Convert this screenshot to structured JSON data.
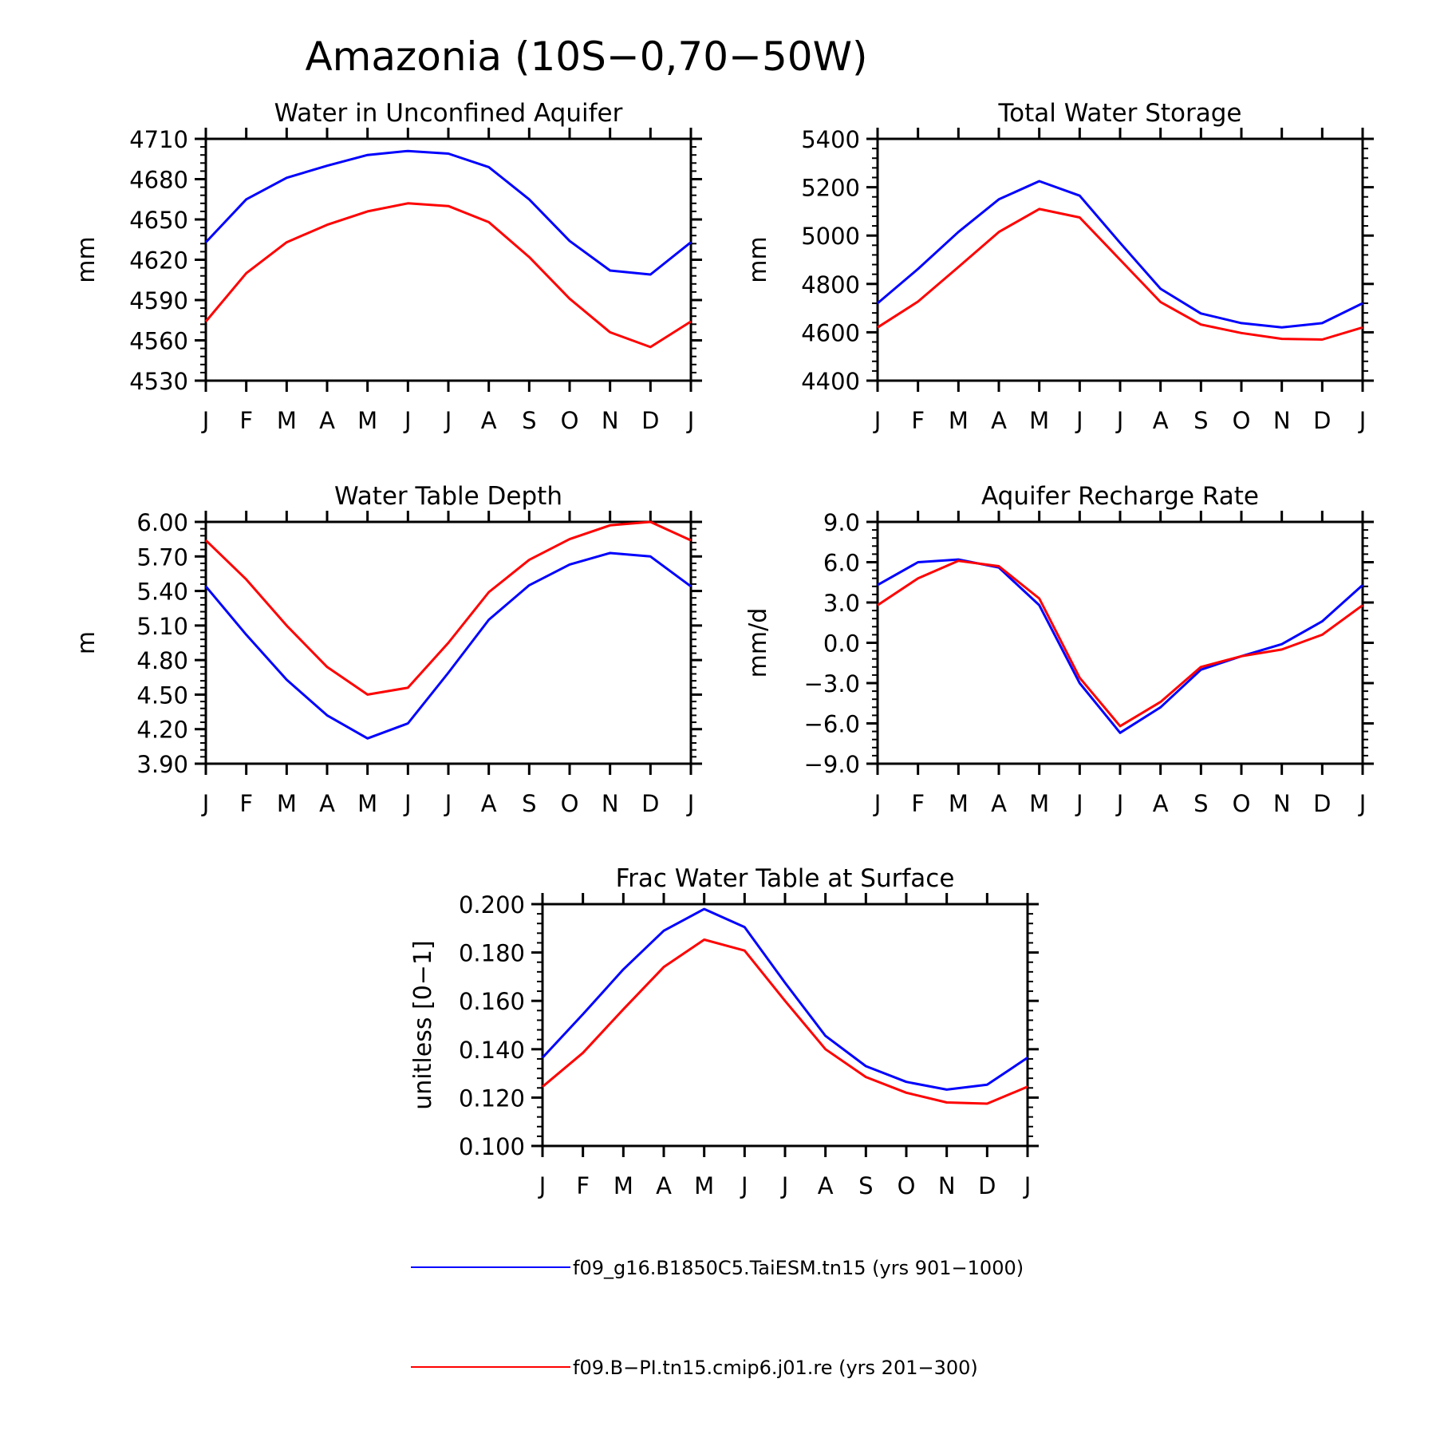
{
  "figure_title": "Amazonia (10S−0,70−50W)",
  "colors": {
    "series_1": "#0000ff",
    "series_2": "#ff0000",
    "axes": "#000000"
  },
  "legend": [
    {
      "label": "f09_g16.B1850C5.TaiESM.tn15 (yrs 901−1000)",
      "color": "#0000ff"
    },
    {
      "label": "f09.B−PI.tn15.cmip6.j01.re (yrs 201−300)",
      "color": "#ff0000"
    }
  ],
  "chart_data": [
    {
      "type": "line",
      "title": "Water in Unconfined Aquifer",
      "xlabel": "",
      "ylabel": "mm",
      "categories": [
        "J",
        "F",
        "M",
        "A",
        "M",
        "J",
        "J",
        "A",
        "S",
        "O",
        "N",
        "D",
        "J"
      ],
      "ylim": [
        4530,
        4710
      ],
      "yticks": [
        "4710",
        "4680",
        "4650",
        "4620",
        "4590",
        "4560",
        "4530"
      ],
      "series": [
        {
          "name": "f09_g16.B1850C5.TaiESM.tn15 (yrs 901−1000)",
          "color": "#0000ff",
          "values": [
            4633,
            4665,
            4681,
            4690,
            4698,
            4701,
            4699,
            4689,
            4665,
            4634,
            4612,
            4609,
            4633
          ]
        },
        {
          "name": "f09.B−PI.tn15.cmip6.j01.re (yrs 201−300)",
          "color": "#ff0000",
          "values": [
            4574,
            4610,
            4633,
            4646,
            4656,
            4662,
            4660,
            4648,
            4622,
            4591,
            4566,
            4555,
            4574
          ]
        }
      ]
    },
    {
      "type": "line",
      "title": "Total Water Storage",
      "xlabel": "",
      "ylabel": "mm",
      "categories": [
        "J",
        "F",
        "M",
        "A",
        "M",
        "J",
        "J",
        "A",
        "S",
        "O",
        "N",
        "D",
        "J"
      ],
      "ylim": [
        4400,
        5400
      ],
      "yticks": [
        "5400",
        "5200",
        "5000",
        "4800",
        "4600",
        "4400"
      ],
      "series": [
        {
          "name": "f09_g16.B1850C5.TaiESM.tn15 (yrs 901−1000)",
          "color": "#0000ff",
          "values": [
            4720,
            4862,
            5015,
            5150,
            5225,
            5165,
            4970,
            4780,
            4678,
            4638,
            4620,
            4638,
            4720
          ]
        },
        {
          "name": "f09.B−PI.tn15.cmip6.j01.re (yrs 201−300)",
          "color": "#ff0000",
          "values": [
            4620,
            4727,
            4870,
            5015,
            5110,
            5075,
            4900,
            4725,
            4632,
            4597,
            4573,
            4570,
            4620
          ]
        }
      ]
    },
    {
      "type": "line",
      "title": "Water Table Depth",
      "xlabel": "",
      "ylabel": "m",
      "categories": [
        "J",
        "F",
        "M",
        "A",
        "M",
        "J",
        "J",
        "A",
        "S",
        "O",
        "N",
        "D",
        "J"
      ],
      "ylim": [
        3.9,
        6.0
      ],
      "yticks": [
        "6.00",
        "5.70",
        "5.40",
        "5.10",
        "4.80",
        "4.50",
        "4.20",
        "3.90"
      ],
      "series": [
        {
          "name": "f09_g16.B1850C5.TaiESM.tn15 (yrs 901−1000)",
          "color": "#0000ff",
          "values": [
            5.44,
            5.02,
            4.63,
            4.32,
            4.12,
            4.25,
            4.69,
            5.15,
            5.45,
            5.63,
            5.73,
            5.7,
            5.44
          ]
        },
        {
          "name": "f09.B−PI.tn15.cmip6.j01.re (yrs 201−300)",
          "color": "#ff0000",
          "values": [
            5.84,
            5.5,
            5.1,
            4.74,
            4.5,
            4.56,
            4.95,
            5.39,
            5.67,
            5.85,
            5.97,
            6.0,
            5.84
          ]
        }
      ]
    },
    {
      "type": "line",
      "title": "Aquifer Recharge Rate",
      "xlabel": "",
      "ylabel": "mm/d",
      "categories": [
        "J",
        "F",
        "M",
        "A",
        "M",
        "J",
        "J",
        "A",
        "S",
        "O",
        "N",
        "D",
        "J"
      ],
      "ylim": [
        -9,
        9
      ],
      "yticks": [
        "9.0",
        "6.0",
        "3.0",
        "0.0",
        "−3.0",
        "−6.0",
        "−9.0"
      ],
      "series": [
        {
          "name": "f09_g16.B1850C5.TaiESM.tn15 (yrs 901−1000)",
          "color": "#0000ff",
          "values": [
            4.3,
            6.0,
            6.2,
            5.6,
            2.8,
            -3.0,
            -6.7,
            -4.8,
            -2.0,
            -1.0,
            -0.1,
            1.6,
            4.3
          ]
        },
        {
          "name": "f09.B−PI.tn15.cmip6.j01.re (yrs 201−300)",
          "color": "#ff0000",
          "values": [
            2.8,
            4.8,
            6.1,
            5.7,
            3.3,
            -2.6,
            -6.2,
            -4.4,
            -1.8,
            -1.0,
            -0.5,
            0.6,
            2.8
          ]
        }
      ]
    },
    {
      "type": "line",
      "title": "Frac Water Table at Surface",
      "xlabel": "",
      "ylabel": "unitless [0−1]",
      "categories": [
        "J",
        "F",
        "M",
        "A",
        "M",
        "J",
        "J",
        "A",
        "S",
        "O",
        "N",
        "D",
        "J"
      ],
      "ylim": [
        0.1,
        0.2
      ],
      "yticks": [
        "0.200",
        "0.180",
        "0.160",
        "0.140",
        "0.120",
        "0.100"
      ],
      "series": [
        {
          "name": "f09_g16.B1850C5.TaiESM.tn15 (yrs 901−1000)",
          "color": "#0000ff",
          "values": [
            0.1365,
            0.1545,
            0.173,
            0.189,
            0.198,
            0.1905,
            0.1675,
            0.1455,
            0.133,
            0.1265,
            0.1233,
            0.1253,
            0.1365
          ]
        },
        {
          "name": "f09.B−PI.tn15.cmip6.j01.re (yrs 201−300)",
          "color": "#ff0000",
          "values": [
            0.1245,
            0.1385,
            0.1565,
            0.174,
            0.1853,
            0.1808,
            0.16,
            0.14,
            0.1285,
            0.122,
            0.118,
            0.1175,
            0.1245
          ]
        }
      ]
    }
  ]
}
